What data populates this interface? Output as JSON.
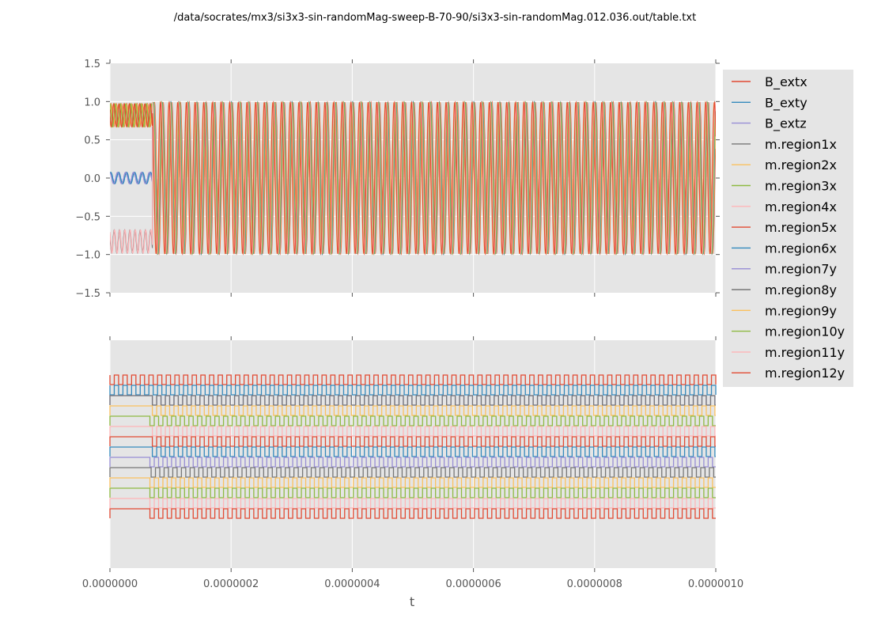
{
  "chart_data": [
    {
      "type": "line",
      "title": "/data/socrates/mx3/si3x3-sin-randomMag-sweep-B-70-90/si3x3-sin-randomMag.012.036.out/table.txt",
      "xlabel": "",
      "ylabel": "",
      "xlim": [
        0,
        1e-06
      ],
      "ylim": [
        -1.5,
        1.5
      ],
      "yticks": [
        "1.5",
        "1.0",
        "0.5",
        "0.0",
        "−0.5",
        "−1.0",
        "−1.5"
      ],
      "ytick_values": [
        1.5,
        1.0,
        0.5,
        0.0,
        -0.5,
        -1.0,
        -1.5
      ],
      "xtick_values": [
        0,
        2e-07,
        4e-07,
        6e-07,
        8e-07,
        1e-06
      ],
      "grid": true,
      "description": "Oscillating magnetization components; before t≈7e-8 traces cluster near +0.8, 0.0 (±0.08 sine) and -0.85; after, all oscillate between -1 and +1",
      "series_summary": {
        "transition_t": 7e-08,
        "early_upper_band": [
          0.62,
          0.98
        ],
        "early_mid_band": [
          -0.08,
          0.08
        ],
        "early_lower_band": [
          -1.0,
          -0.65
        ],
        "late_range": [
          -1.0,
          1.0
        ],
        "late_cycles": 70
      }
    },
    {
      "type": "line",
      "title": "",
      "xlabel": "t",
      "ylabel": "",
      "xlim": [
        0,
        1e-06
      ],
      "xticks": [
        "0.0000000",
        "0.0000002",
        "0.0000004",
        "0.0000006",
        "0.0000008",
        "0.0000010"
      ],
      "xtick_values": [
        0,
        2e-07,
        4e-07,
        6e-07,
        8e-07,
        1e-06
      ],
      "grid": true,
      "description": "Digital (square-wave) traces per series, stacked offsets; region traces flat until t≈7e-8 then toggle",
      "traces": [
        {
          "name": "B_extx",
          "level": 1,
          "start_t": 0,
          "cycles": 70
        },
        {
          "name": "B_exty",
          "level": 2,
          "start_t": 0,
          "cycles": 70
        },
        {
          "name": "B_extz",
          "level": 3,
          "start_t": 7e-08,
          "cycles": 70
        },
        {
          "name": "m.region1x",
          "level": 3,
          "start_t": 7e-08,
          "cycles": 70
        },
        {
          "name": "m.region2x",
          "level": 4,
          "start_t": 7e-08,
          "cycles": 70
        },
        {
          "name": "m.region3x",
          "level": 5,
          "start_t": 6.6e-08,
          "cycles": 70
        },
        {
          "name": "m.region4x",
          "level": 6,
          "start_t": 7e-08,
          "cycles": 70
        },
        {
          "name": "m.region5x",
          "level": 7,
          "start_t": 7e-08,
          "cycles": 70
        },
        {
          "name": "m.region6x",
          "level": 8,
          "start_t": 7e-08,
          "cycles": 70
        },
        {
          "name": "m.region7y",
          "level": 9,
          "start_t": 6.6e-08,
          "cycles": 70
        },
        {
          "name": "m.region8y",
          "level": 10,
          "start_t": 6.8e-08,
          "cycles": 70
        },
        {
          "name": "m.region9y",
          "level": 11,
          "start_t": 6.6e-08,
          "cycles": 70
        },
        {
          "name": "m.region10y",
          "level": 12,
          "start_t": 6.6e-08,
          "cycles": 70
        },
        {
          "name": "m.region11y",
          "level": 13,
          "start_t": 6.6e-08,
          "cycles": 70
        },
        {
          "name": "m.region12y",
          "level": 14,
          "start_t": 6.6e-08,
          "cycles": 70
        }
      ]
    }
  ],
  "legend": {
    "placement": "right",
    "entries": [
      {
        "label": "B_extx",
        "color": "#E24A33"
      },
      {
        "label": "B_exty",
        "color": "#348ABD"
      },
      {
        "label": "B_extz",
        "color": "#988ED5"
      },
      {
        "label": "m.region1x",
        "color": "#777777"
      },
      {
        "label": "m.region2x",
        "color": "#FBC15E"
      },
      {
        "label": "m.region3x",
        "color": "#8EBA42"
      },
      {
        "label": "m.region4x",
        "color": "#FFB5B8"
      },
      {
        "label": "m.region5x",
        "color": "#E24A33"
      },
      {
        "label": "m.region6x",
        "color": "#348ABD"
      },
      {
        "label": "m.region7y",
        "color": "#988ED5"
      },
      {
        "label": "m.region8y",
        "color": "#777777"
      },
      {
        "label": "m.region9y",
        "color": "#FBC15E"
      },
      {
        "label": "m.region10y",
        "color": "#8EBA42"
      },
      {
        "label": "m.region11y",
        "color": "#FFB5B8"
      },
      {
        "label": "m.region12y",
        "color": "#E24A33"
      }
    ]
  },
  "colors": {
    "axes_bg": "#E5E5E5",
    "grid": "#FFFFFF",
    "tick_label": "#555555"
  }
}
